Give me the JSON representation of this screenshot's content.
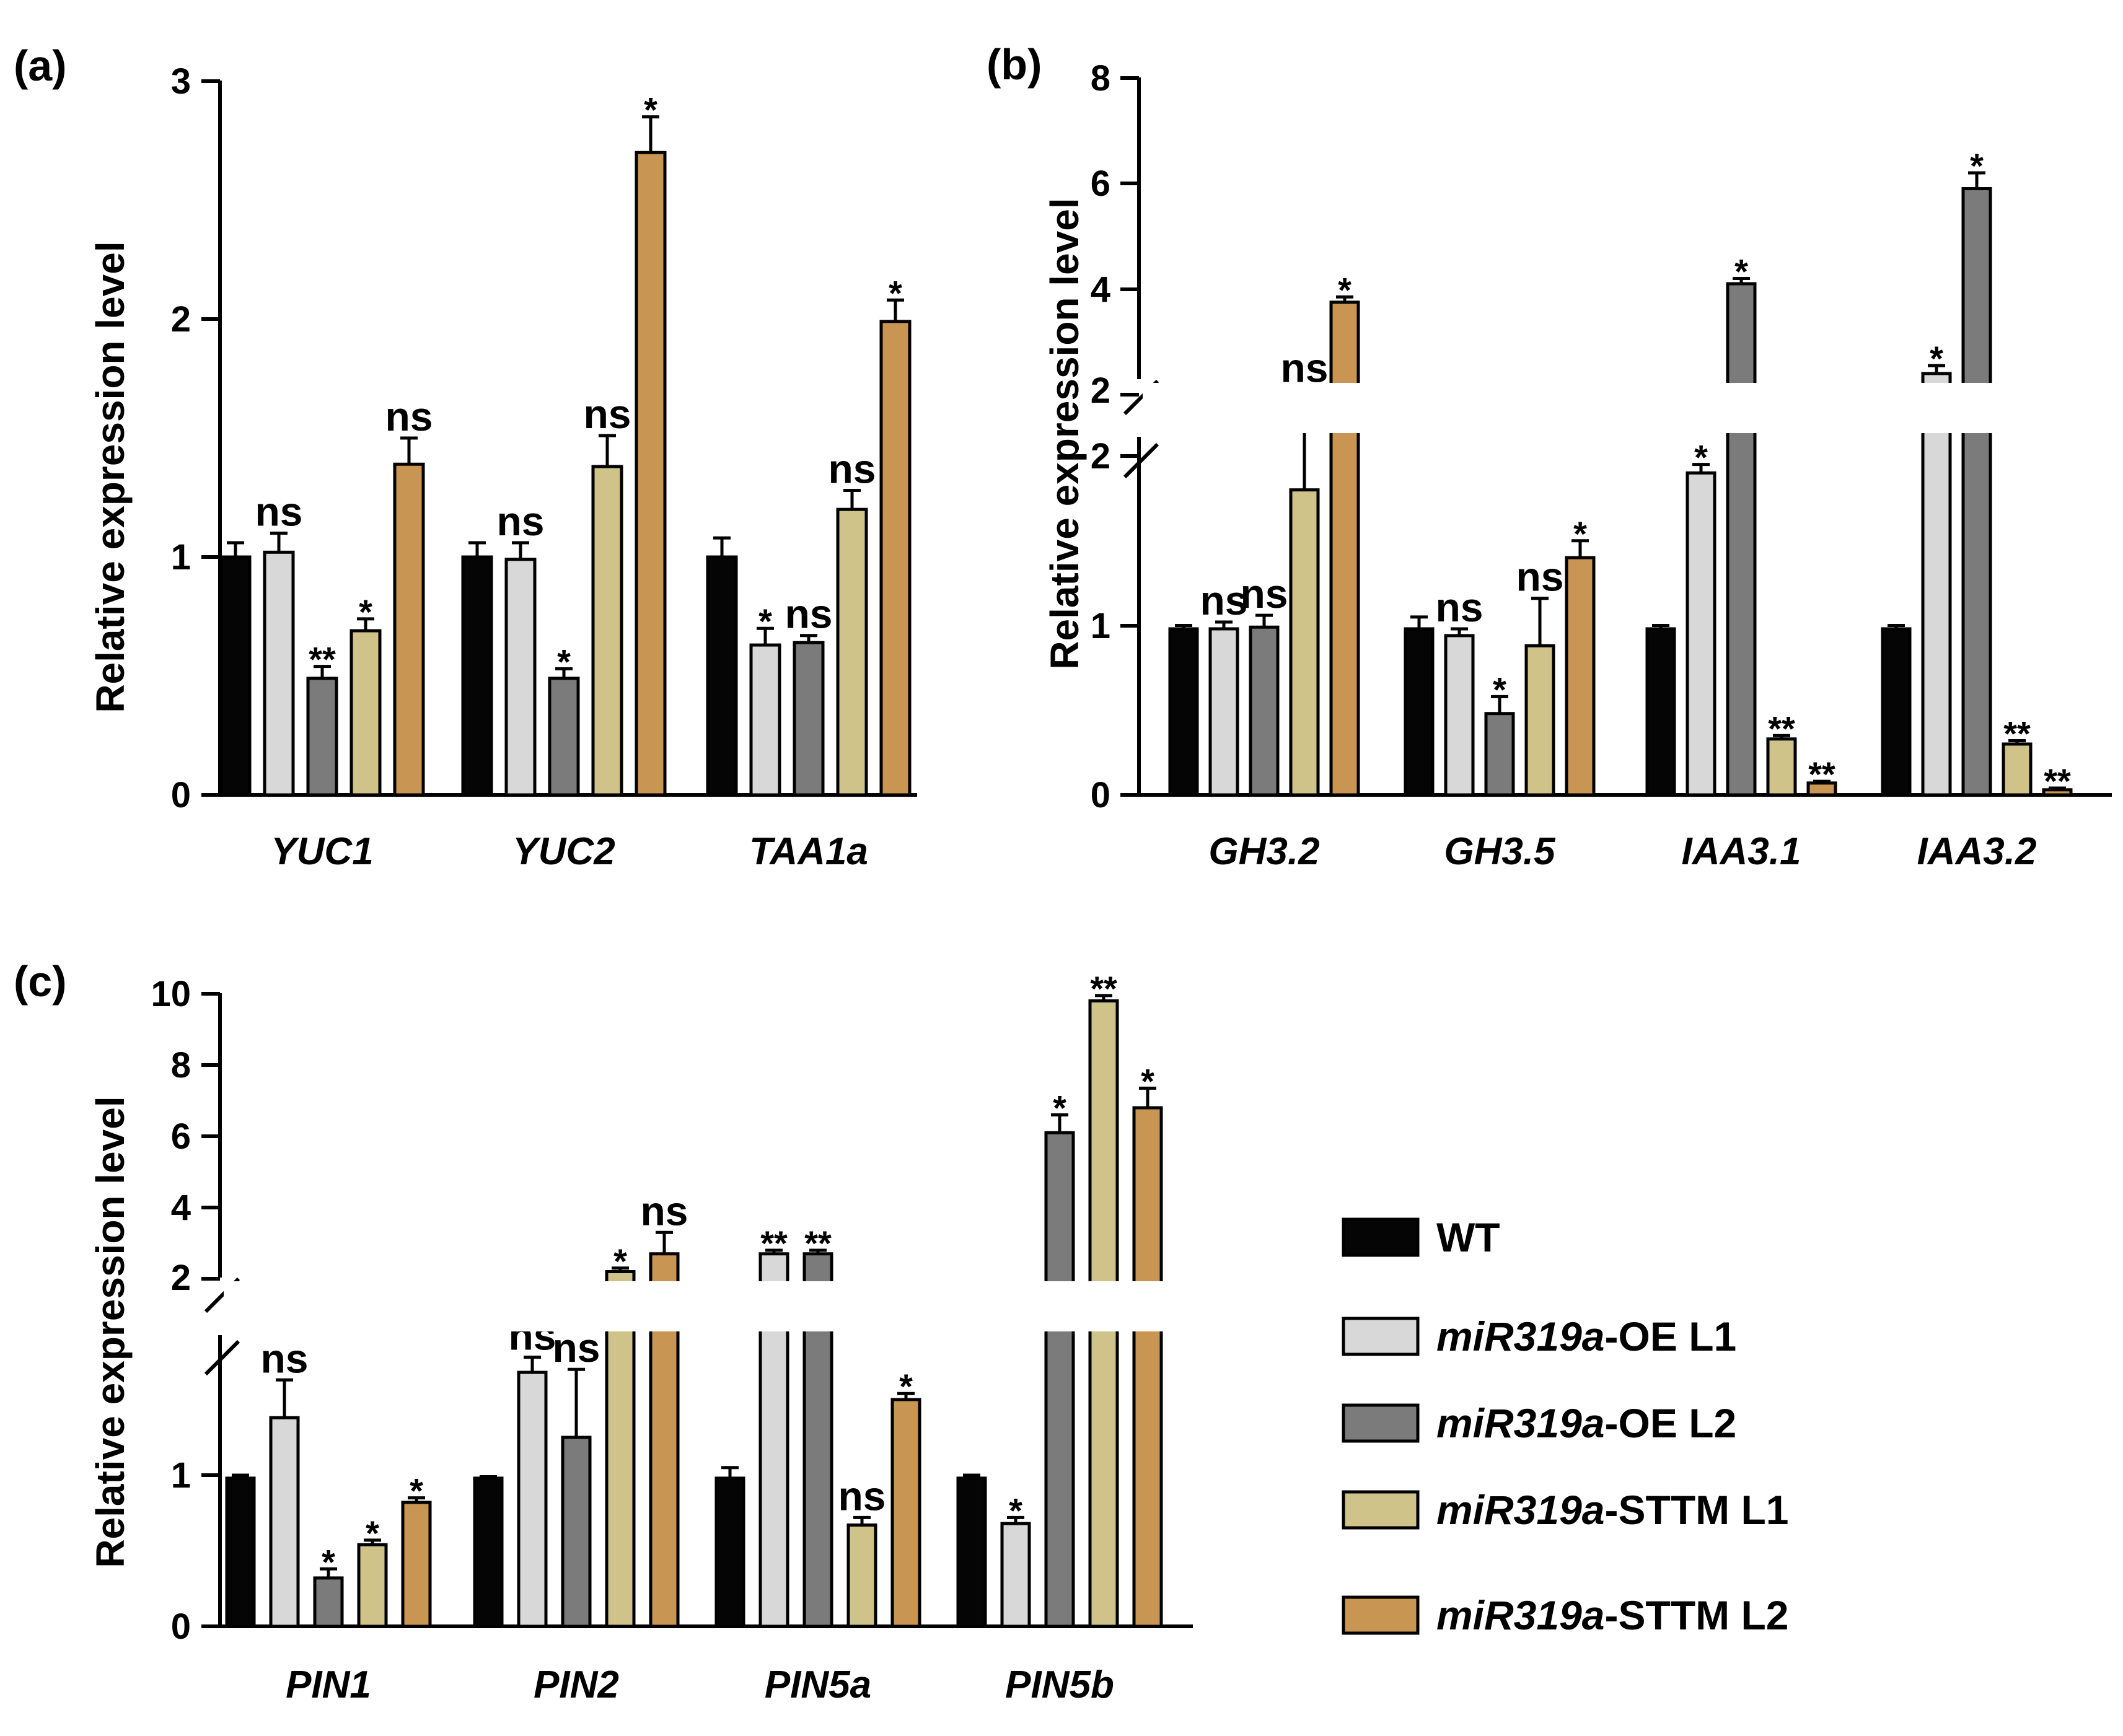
{
  "legend": {
    "entries": [
      {
        "label_italic": "",
        "label_rest": "WT",
        "color": "#050505"
      },
      {
        "label_italic": "miR319a",
        "label_rest": "-OE L1",
        "color": "#d8d8d8"
      },
      {
        "label_italic": "miR319a",
        "label_rest": "-OE L2",
        "color": "#7b7b7b"
      },
      {
        "label_italic": "miR319a",
        "label_rest": "-STTM L1",
        "color": "#cfc389"
      },
      {
        "label_italic": "miR319a",
        "label_rest": "-STTM L2",
        "color": "#c99552"
      }
    ]
  },
  "chart_data": [
    {
      "id": "a",
      "type": "bar",
      "panel_label": "(a)",
      "ylabel": "Relative expression level",
      "ylim": [
        0,
        3
      ],
      "y_ticks": [
        "0",
        "1",
        "2",
        "3"
      ],
      "categories": [
        "YUC1",
        "YUC2",
        "TAA1a"
      ],
      "series": [
        {
          "name": "WT",
          "values": [
            1.0,
            1.0,
            1.0
          ],
          "errors": [
            0.06,
            0.06,
            0.08
          ],
          "sig": [
            "",
            "",
            ""
          ]
        },
        {
          "name": "miR319a-OE L1",
          "values": [
            1.02,
            0.99,
            0.63
          ],
          "errors": [
            0.08,
            0.07,
            0.07
          ],
          "sig": [
            "ns",
            "ns",
            "*"
          ]
        },
        {
          "name": "miR319a-OE L2",
          "values": [
            0.49,
            0.49,
            0.64
          ],
          "errors": [
            0.05,
            0.04,
            0.03
          ],
          "sig": [
            "**",
            "*",
            "ns"
          ]
        },
        {
          "name": "miR319a-STTM L1",
          "values": [
            0.69,
            1.38,
            1.2
          ],
          "errors": [
            0.05,
            0.13,
            0.08
          ],
          "sig": [
            "*",
            "ns",
            "ns"
          ]
        },
        {
          "name": "miR319a-STTM L2",
          "values": [
            1.39,
            2.7,
            1.99
          ],
          "errors": [
            0.11,
            0.15,
            0.09
          ],
          "sig": [
            "ns",
            "*",
            "*"
          ]
        }
      ]
    },
    {
      "id": "b",
      "type": "bar",
      "panel_label": "(b)",
      "ylabel": "Relative expression level",
      "ylim": [
        0,
        8
      ],
      "y_break": [
        2,
        2
      ],
      "y_ticks": [
        "0",
        "1",
        "2",
        "2",
        "4",
        "6",
        "8"
      ],
      "categories": [
        "GH3.2",
        "GH3.5",
        "IAA3.1",
        "IAA3.2"
      ],
      "series": [
        {
          "name": "WT",
          "values": [
            0.98,
            0.98,
            0.98,
            0.98
          ],
          "errors": [
            0.02,
            0.07,
            0.02,
            0.02
          ],
          "sig": [
            "",
            "",
            "",
            ""
          ]
        },
        {
          "name": "miR319a-OE L1",
          "values": [
            0.98,
            0.94,
            1.9,
            2.4
          ],
          "errors": [
            0.04,
            0.04,
            0.05,
            0.15
          ],
          "sig": [
            "ns",
            "ns",
            "*",
            "*"
          ]
        },
        {
          "name": "miR319a-OE L2",
          "values": [
            0.99,
            0.48,
            4.1,
            5.9
          ],
          "errors": [
            0.07,
            0.1,
            0.1,
            0.3
          ],
          "sig": [
            "ns",
            "*",
            "*",
            "*"
          ]
        },
        {
          "name": "miR319a-STTM L1",
          "values": [
            1.8,
            0.88,
            0.33,
            0.3
          ],
          "errors": [
            0.3,
            0.28,
            0.02,
            0.02
          ],
          "sig": [
            "ns",
            "ns",
            "**",
            "**"
          ]
        },
        {
          "name": "miR319a-STTM L2",
          "values": [
            3.75,
            1.4,
            0.07,
            0.03
          ],
          "errors": [
            0.1,
            0.1,
            0.01,
            0.01
          ],
          "sig": [
            "*",
            "*",
            "**",
            "**"
          ]
        }
      ]
    },
    {
      "id": "c",
      "type": "bar",
      "panel_label": "(c)",
      "ylabel": "Relative expression level",
      "ylim": [
        0,
        10
      ],
      "y_break": [
        2,
        2
      ],
      "y_ticks": [
        "0",
        "1",
        "2",
        "4",
        "6",
        "8",
        "10"
      ],
      "categories": [
        "PIN1",
        "PIN2",
        "PIN5a",
        "PIN5b"
      ],
      "series": [
        {
          "name": "WT",
          "values": [
            0.98,
            0.98,
            0.98,
            0.98
          ],
          "errors": [
            0.02,
            0.01,
            0.07,
            0.02
          ],
          "sig": [
            "",
            "",
            "",
            ""
          ]
        },
        {
          "name": "miR319a-OE L1",
          "values": [
            1.38,
            1.68,
            2.7,
            0.68
          ],
          "errors": [
            0.25,
            0.1,
            0.1,
            0.04
          ],
          "sig": [
            "ns",
            "ns",
            "**",
            "*"
          ]
        },
        {
          "name": "miR319a-OE L2",
          "values": [
            0.32,
            1.25,
            2.7,
            6.1
          ],
          "errors": [
            0.06,
            0.45,
            0.1,
            0.5
          ],
          "sig": [
            "*",
            "ns",
            "**",
            "*"
          ]
        },
        {
          "name": "miR319a-STTM L1",
          "values": [
            0.54,
            2.2,
            0.67,
            9.8
          ],
          "errors": [
            0.03,
            0.1,
            0.05,
            0.15
          ],
          "sig": [
            "*",
            "*",
            "ns",
            "**"
          ]
        },
        {
          "name": "miR319a-STTM L2",
          "values": [
            0.82,
            2.7,
            1.5,
            6.8
          ],
          "errors": [
            0.03,
            0.6,
            0.04,
            0.55
          ],
          "sig": [
            "*",
            "ns",
            "*",
            "*"
          ]
        }
      ]
    }
  ]
}
